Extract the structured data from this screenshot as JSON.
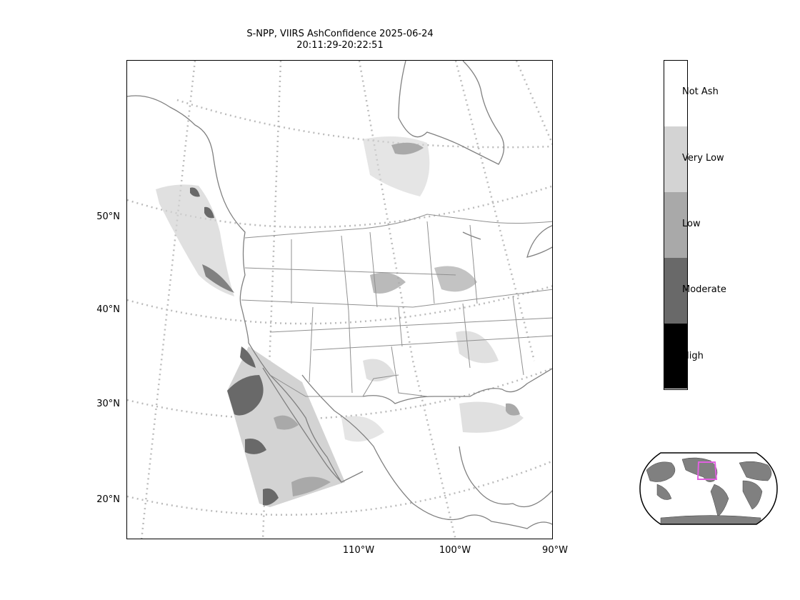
{
  "title": {
    "line1": "S-NPP, VIIRS AshConfidence 2025-06-24",
    "line2": "20:11:29-20:22:51"
  },
  "map": {
    "lat_labels": [
      "50°N",
      "40°N",
      "30°N",
      "20°N"
    ],
    "lon_labels": [
      "110°W",
      "100°W",
      "90°W"
    ],
    "graticule_color": "#bbbbbb",
    "border_color": "#808080"
  },
  "colorbar": {
    "categories": [
      {
        "label": "Not Ash",
        "color": "#ffffff"
      },
      {
        "label": "Very Low",
        "color": "#d3d3d3"
      },
      {
        "label": "Low",
        "color": "#a9a9a9"
      },
      {
        "label": "Moderate",
        "color": "#696969"
      },
      {
        "label": "High",
        "color": "#000000"
      }
    ]
  },
  "inset_globe": {
    "land_color": "#808080",
    "highlight_color": "#e060e0"
  }
}
